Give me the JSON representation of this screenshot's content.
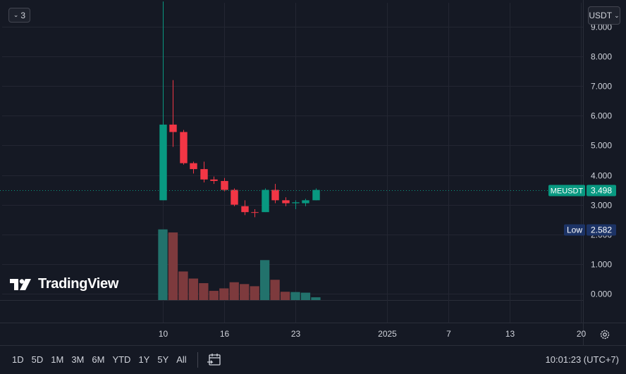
{
  "header": {
    "collapse_count": "3",
    "currency": "USDT"
  },
  "logo_text": "TradingView",
  "toolbar": {
    "timeframes": [
      "1D",
      "5D",
      "1M",
      "3M",
      "6M",
      "YTD",
      "1Y",
      "5Y",
      "All"
    ],
    "clock": "10:01:23 (UTC+7)"
  },
  "chart_data": {
    "type": "candlestick",
    "symbol": "MEUSDT",
    "last_price": 3.498,
    "low_label": "Low",
    "low_value": 2.582,
    "y_ticks": [
      "9.000",
      "8.000",
      "7.000",
      "6.000",
      "5.000",
      "4.000",
      "3.000",
      "2.000",
      "1.000",
      "0.000"
    ],
    "y_tick_values": [
      9,
      8,
      7,
      6,
      5,
      4,
      3,
      2,
      1,
      0
    ],
    "ylim": [
      0,
      9.9
    ],
    "x_ticks": [
      "10",
      "16",
      "23",
      "2025",
      "7",
      "13",
      "20"
    ],
    "x_range": [
      "2024-12-10",
      "2025-01-20"
    ],
    "x_tick_dates": [
      "2024-12-10",
      "2024-12-16",
      "2024-12-23",
      "2025-01-01",
      "2025-01-07",
      "2025-01-13",
      "2025-01-20"
    ],
    "candles": [
      {
        "date": "2024-12-10",
        "open": 3.15,
        "high": 9.85,
        "low": 3.15,
        "close": 5.7
      },
      {
        "date": "2024-12-11",
        "open": 5.7,
        "high": 7.2,
        "low": 4.95,
        "close": 5.45
      },
      {
        "date": "2024-12-12",
        "open": 5.45,
        "high": 5.52,
        "low": 4.35,
        "close": 4.4
      },
      {
        "date": "2024-12-13",
        "open": 4.4,
        "high": 4.45,
        "low": 4.05,
        "close": 4.2
      },
      {
        "date": "2024-12-14",
        "open": 4.2,
        "high": 4.45,
        "low": 3.75,
        "close": 3.85
      },
      {
        "date": "2024-12-15",
        "open": 3.85,
        "high": 3.95,
        "low": 3.7,
        "close": 3.8
      },
      {
        "date": "2024-12-16",
        "open": 3.8,
        "high": 3.9,
        "low": 3.45,
        "close": 3.5
      },
      {
        "date": "2024-12-17",
        "open": 3.5,
        "high": 3.55,
        "low": 2.95,
        "close": 3.0
      },
      {
        "date": "2024-12-18",
        "open": 2.95,
        "high": 3.15,
        "low": 2.65,
        "close": 2.75
      },
      {
        "date": "2024-12-19",
        "open": 2.75,
        "high": 2.85,
        "low": 2.58,
        "close": 2.73
      },
      {
        "date": "2024-12-20",
        "open": 2.75,
        "high": 3.55,
        "low": 2.75,
        "close": 3.5
      },
      {
        "date": "2024-12-21",
        "open": 3.5,
        "high": 3.7,
        "low": 3.05,
        "close": 3.15
      },
      {
        "date": "2024-12-22",
        "open": 3.15,
        "high": 3.25,
        "low": 2.95,
        "close": 3.05
      },
      {
        "date": "2024-12-23",
        "open": 3.05,
        "high": 3.15,
        "low": 2.85,
        "close": 3.08
      },
      {
        "date": "2024-12-24",
        "open": 3.05,
        "high": 3.2,
        "low": 2.95,
        "close": 3.15
      },
      {
        "date": "2024-12-25",
        "open": 3.15,
        "high": 3.55,
        "low": 3.15,
        "close": 3.498
      }
    ],
    "volumes": [
      2.3,
      2.2,
      0.93,
      0.7,
      0.55,
      0.3,
      0.38,
      0.58,
      0.52,
      0.45,
      1.3,
      0.66,
      0.27,
      0.26,
      0.24,
      0.09
    ],
    "volume_ylim": [
      0,
      2.6
    ]
  },
  "colors": {
    "up": "#089981",
    "down": "#f23645",
    "up_vol": "#22726c",
    "down_vol": "#7d3a3d",
    "bg": "#151924",
    "grid": "#232632",
    "text": "#d1d4dc",
    "low_label_bg": "#1c3366"
  }
}
